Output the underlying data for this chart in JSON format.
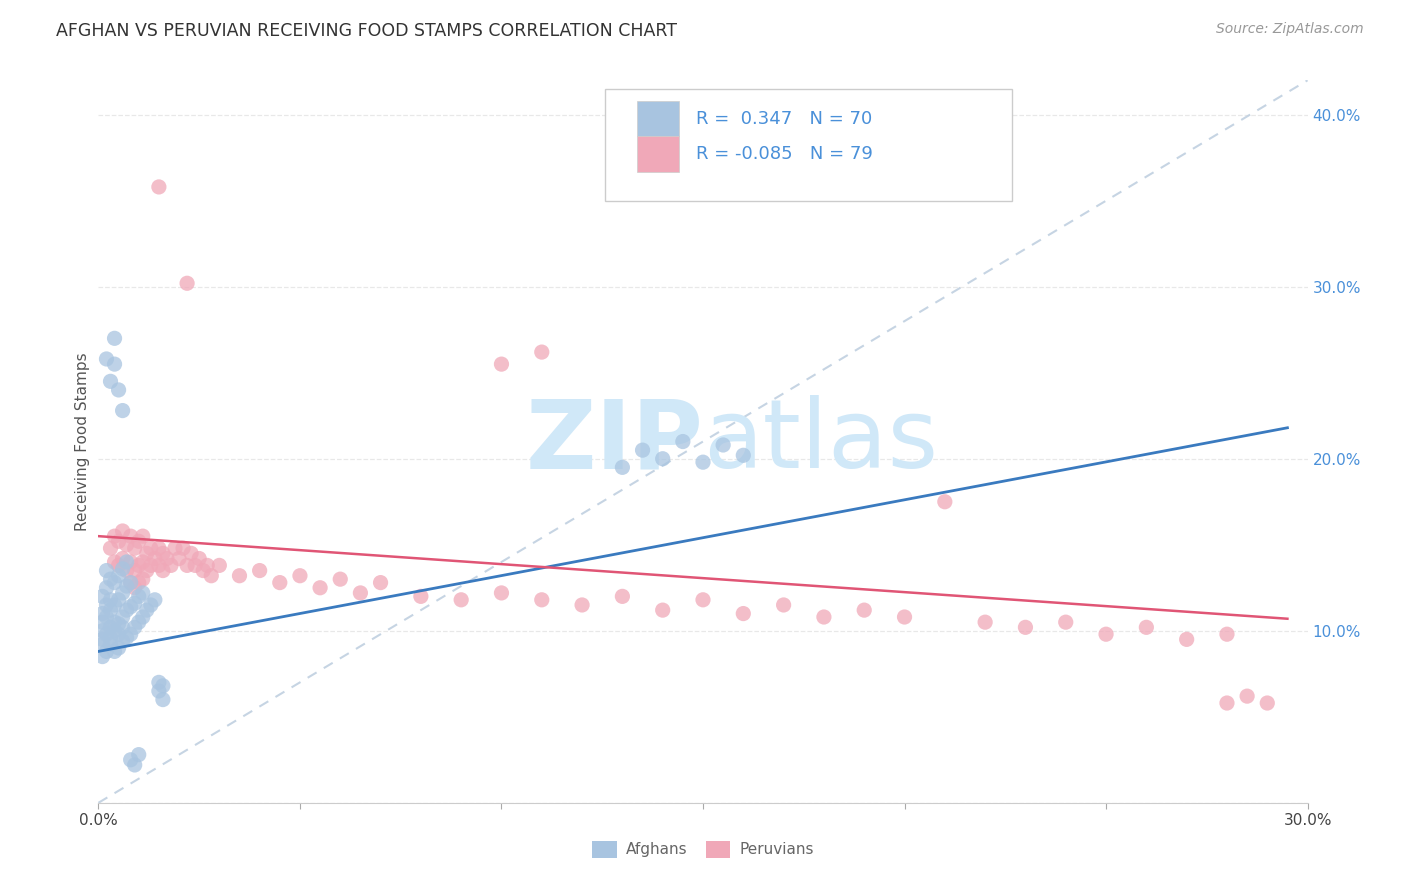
{
  "title": "AFGHAN VS PERUVIAN RECEIVING FOOD STAMPS CORRELATION CHART",
  "source": "Source: ZipAtlas.com",
  "ylabel": "Receiving Food Stamps",
  "xlim": [
    0.0,
    0.3
  ],
  "ylim": [
    0.0,
    0.42
  ],
  "afghan_color": "#a8c4e0",
  "peruvian_color": "#f0a8b8",
  "afghan_line_color": "#3a7abf",
  "peruvian_line_color": "#e05575",
  "ref_line_color": "#c0d0e0",
  "background_color": "#ffffff",
  "grid_color": "#e8e8e8",
  "title_color": "#333333",
  "source_color": "#999999",
  "tick_color": "#4a90d9",
  "ylabel_color": "#555555",
  "legend_text_color": "#4a90d9",
  "legend_border_color": "#cccccc",
  "bottom_legend_text_color": "#666666",
  "watermark_color": "#d0e8f8",
  "afghan_line_x": [
    0.0,
    0.295
  ],
  "afghan_line_y": [
    0.088,
    0.218
  ],
  "peruvian_line_x": [
    0.0,
    0.295
  ],
  "peruvian_line_y": [
    0.155,
    0.107
  ],
  "ref_line_x": [
    0.0,
    0.3
  ],
  "ref_line_y": [
    0.0,
    0.42
  ],
  "afghan_points": [
    [
      0.001,
      0.085
    ],
    [
      0.001,
      0.092
    ],
    [
      0.001,
      0.1
    ],
    [
      0.001,
      0.11
    ],
    [
      0.001,
      0.12
    ],
    [
      0.001,
      0.105
    ],
    [
      0.001,
      0.095
    ],
    [
      0.002,
      0.088
    ],
    [
      0.002,
      0.098
    ],
    [
      0.002,
      0.115
    ],
    [
      0.002,
      0.125
    ],
    [
      0.002,
      0.135
    ],
    [
      0.002,
      0.108
    ],
    [
      0.003,
      0.092
    ],
    [
      0.003,
      0.102
    ],
    [
      0.003,
      0.118
    ],
    [
      0.003,
      0.13
    ],
    [
      0.003,
      0.112
    ],
    [
      0.003,
      0.096
    ],
    [
      0.004,
      0.088
    ],
    [
      0.004,
      0.1
    ],
    [
      0.004,
      0.115
    ],
    [
      0.004,
      0.128
    ],
    [
      0.004,
      0.105
    ],
    [
      0.005,
      0.09
    ],
    [
      0.005,
      0.104
    ],
    [
      0.005,
      0.118
    ],
    [
      0.005,
      0.132
    ],
    [
      0.005,
      0.098
    ],
    [
      0.006,
      0.094
    ],
    [
      0.006,
      0.108
    ],
    [
      0.006,
      0.122
    ],
    [
      0.006,
      0.136
    ],
    [
      0.006,
      0.102
    ],
    [
      0.007,
      0.096
    ],
    [
      0.007,
      0.112
    ],
    [
      0.007,
      0.126
    ],
    [
      0.007,
      0.14
    ],
    [
      0.008,
      0.098
    ],
    [
      0.008,
      0.114
    ],
    [
      0.008,
      0.128
    ],
    [
      0.009,
      0.102
    ],
    [
      0.009,
      0.116
    ],
    [
      0.01,
      0.105
    ],
    [
      0.01,
      0.12
    ],
    [
      0.011,
      0.108
    ],
    [
      0.011,
      0.122
    ],
    [
      0.012,
      0.112
    ],
    [
      0.013,
      0.115
    ],
    [
      0.014,
      0.118
    ],
    [
      0.015,
      0.065
    ],
    [
      0.015,
      0.07
    ],
    [
      0.016,
      0.06
    ],
    [
      0.016,
      0.068
    ],
    [
      0.002,
      0.258
    ],
    [
      0.003,
      0.245
    ],
    [
      0.004,
      0.27
    ],
    [
      0.004,
      0.255
    ],
    [
      0.005,
      0.24
    ],
    [
      0.006,
      0.228
    ],
    [
      0.13,
      0.195
    ],
    [
      0.135,
      0.205
    ],
    [
      0.14,
      0.2
    ],
    [
      0.145,
      0.21
    ],
    [
      0.15,
      0.198
    ],
    [
      0.155,
      0.208
    ],
    [
      0.16,
      0.202
    ],
    [
      0.008,
      0.025
    ],
    [
      0.009,
      0.022
    ],
    [
      0.01,
      0.028
    ]
  ],
  "peruvian_points": [
    [
      0.003,
      0.148
    ],
    [
      0.004,
      0.155
    ],
    [
      0.004,
      0.14
    ],
    [
      0.005,
      0.152
    ],
    [
      0.005,
      0.138
    ],
    [
      0.006,
      0.158
    ],
    [
      0.006,
      0.142
    ],
    [
      0.007,
      0.15
    ],
    [
      0.007,
      0.135
    ],
    [
      0.008,
      0.155
    ],
    [
      0.008,
      0.14
    ],
    [
      0.008,
      0.128
    ],
    [
      0.009,
      0.148
    ],
    [
      0.009,
      0.135
    ],
    [
      0.009,
      0.125
    ],
    [
      0.01,
      0.152
    ],
    [
      0.01,
      0.138
    ],
    [
      0.01,
      0.128
    ],
    [
      0.011,
      0.155
    ],
    [
      0.011,
      0.14
    ],
    [
      0.011,
      0.13
    ],
    [
      0.012,
      0.145
    ],
    [
      0.012,
      0.135
    ],
    [
      0.013,
      0.148
    ],
    [
      0.013,
      0.138
    ],
    [
      0.014,
      0.142
    ],
    [
      0.015,
      0.148
    ],
    [
      0.015,
      0.138
    ],
    [
      0.016,
      0.145
    ],
    [
      0.016,
      0.135
    ],
    [
      0.017,
      0.142
    ],
    [
      0.018,
      0.138
    ],
    [
      0.019,
      0.148
    ],
    [
      0.02,
      0.142
    ],
    [
      0.021,
      0.148
    ],
    [
      0.022,
      0.138
    ],
    [
      0.023,
      0.145
    ],
    [
      0.024,
      0.138
    ],
    [
      0.025,
      0.142
    ],
    [
      0.026,
      0.135
    ],
    [
      0.027,
      0.138
    ],
    [
      0.028,
      0.132
    ],
    [
      0.03,
      0.138
    ],
    [
      0.035,
      0.132
    ],
    [
      0.04,
      0.135
    ],
    [
      0.045,
      0.128
    ],
    [
      0.05,
      0.132
    ],
    [
      0.055,
      0.125
    ],
    [
      0.06,
      0.13
    ],
    [
      0.065,
      0.122
    ],
    [
      0.07,
      0.128
    ],
    [
      0.08,
      0.12
    ],
    [
      0.09,
      0.118
    ],
    [
      0.1,
      0.122
    ],
    [
      0.11,
      0.118
    ],
    [
      0.12,
      0.115
    ],
    [
      0.13,
      0.12
    ],
    [
      0.14,
      0.112
    ],
    [
      0.15,
      0.118
    ],
    [
      0.16,
      0.11
    ],
    [
      0.17,
      0.115
    ],
    [
      0.18,
      0.108
    ],
    [
      0.19,
      0.112
    ],
    [
      0.2,
      0.108
    ],
    [
      0.21,
      0.175
    ],
    [
      0.22,
      0.105
    ],
    [
      0.23,
      0.102
    ],
    [
      0.24,
      0.105
    ],
    [
      0.25,
      0.098
    ],
    [
      0.26,
      0.102
    ],
    [
      0.27,
      0.095
    ],
    [
      0.28,
      0.098
    ],
    [
      0.015,
      0.358
    ],
    [
      0.022,
      0.302
    ],
    [
      0.1,
      0.255
    ],
    [
      0.11,
      0.262
    ],
    [
      0.28,
      0.058
    ],
    [
      0.285,
      0.062
    ],
    [
      0.29,
      0.058
    ]
  ]
}
